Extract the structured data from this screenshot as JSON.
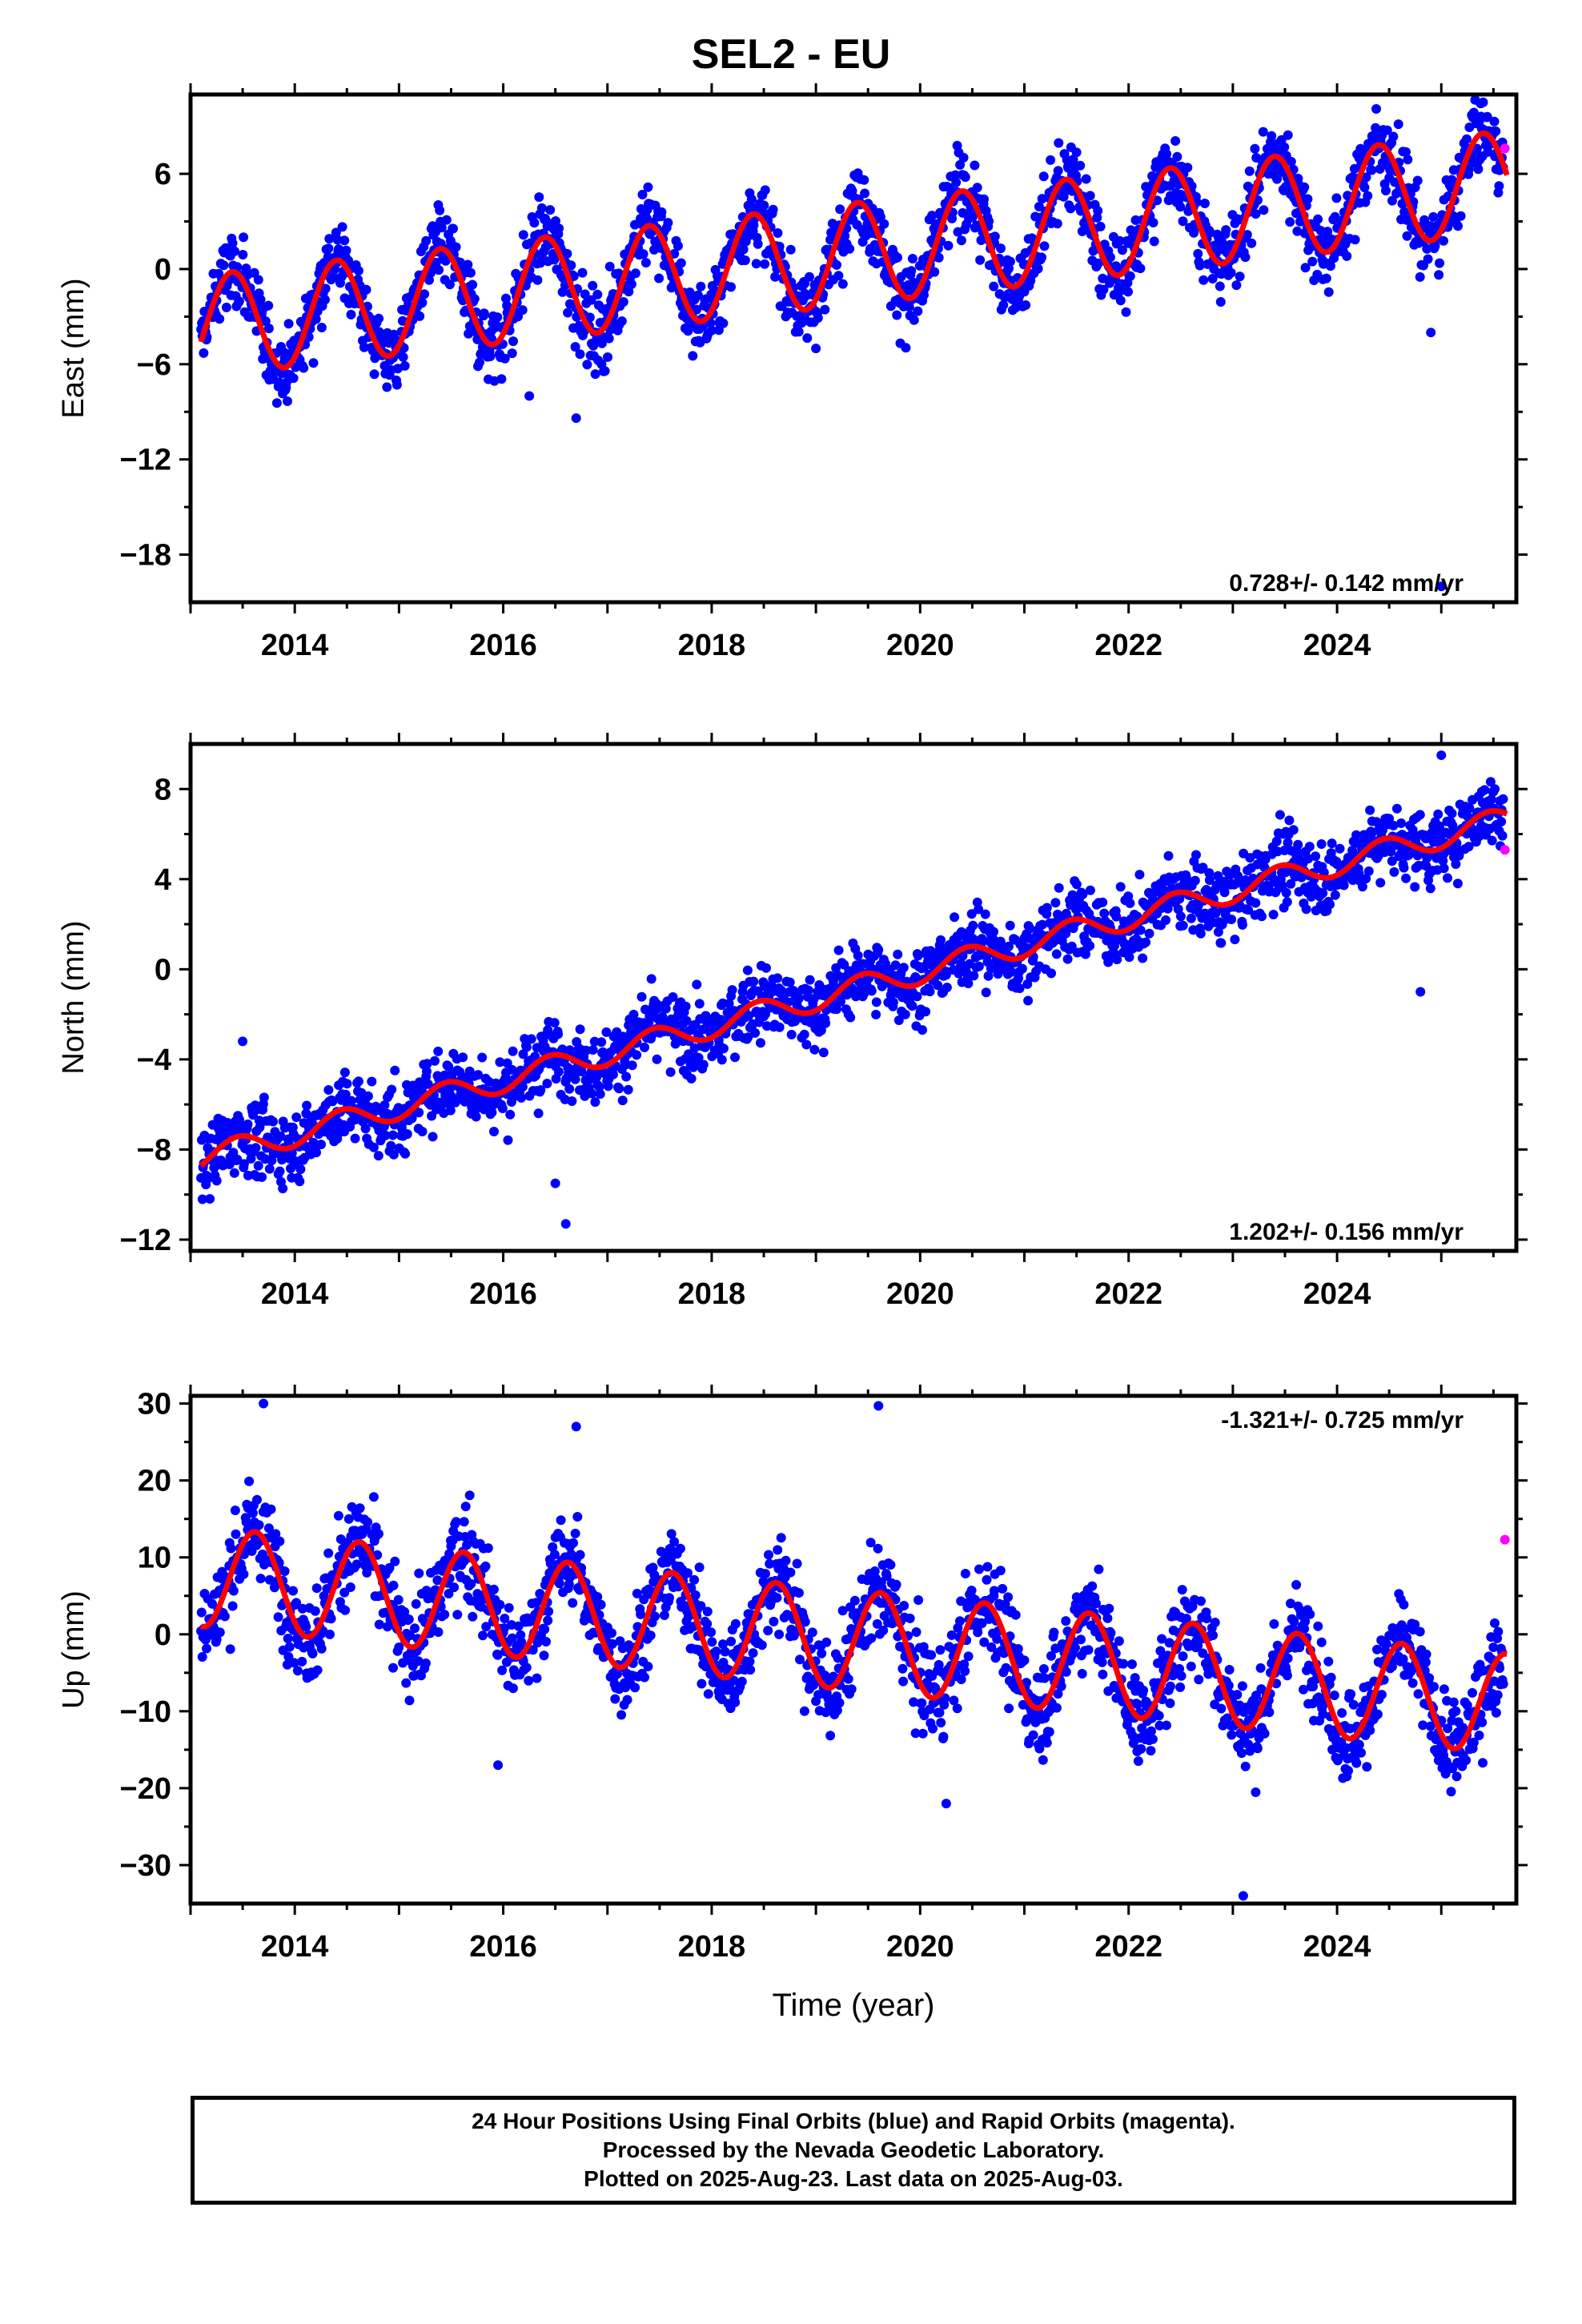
{
  "title": "SEL2 - EU",
  "footer": {
    "line1": "24 Hour Positions Using Final Orbits (blue) and Rapid Orbits (magenta).",
    "line2": "Processed by the Nevada Geodetic Laboratory.",
    "line3": "Plotted on 2025-Aug-23. Last data on 2025-Aug-03."
  },
  "colors": {
    "final": "#0000ff",
    "rapid": "#ff00ff",
    "model": "#ff0000",
    "axis": "#000000"
  },
  "chart_data": [
    {
      "type": "scatter",
      "panel": "east",
      "ylabel": "East (mm)",
      "xlabel": "",
      "xlim": [
        2013.0,
        2025.72
      ],
      "ylim": [
        -21,
        11
      ],
      "xticks": [
        2014,
        2016,
        2018,
        2020,
        2022,
        2024
      ],
      "yticks": [
        6,
        0,
        -6,
        -12,
        -18
      ],
      "ytick_labels": [
        "6",
        "0",
        "−6",
        "−12",
        "−18"
      ],
      "rate_label": "0.728+/- 0.142 mm/yr",
      "rate_label_position": "bottom-right",
      "model": {
        "t0": 2013.1,
        "offset": -3.6,
        "trend": 0.728,
        "amplitude": 3.2,
        "peak": 0.4,
        "mid_offset": 0.9
      },
      "scatter": 2.0,
      "outliers": [
        [
          2016.7,
          -9.4
        ],
        [
          2016.25,
          -8.0
        ],
        [
          2024.9,
          -4.0
        ],
        [
          2025.0,
          -20.0
        ]
      ],
      "rapid_orbits": [
        [
          2025.61,
          7.6
        ]
      ]
    },
    {
      "type": "scatter",
      "panel": "north",
      "ylabel": "North (mm)",
      "xlabel": "",
      "xlim": [
        2013.0,
        2025.72
      ],
      "ylim": [
        -12.5,
        10
      ],
      "xticks": [
        2014,
        2016,
        2018,
        2020,
        2022,
        2024
      ],
      "yticks": [
        8,
        4,
        0,
        -4,
        -8,
        -12
      ],
      "ytick_labels": [
        "8",
        "4",
        "0",
        "−4",
        "−8",
        "−12"
      ],
      "rate_label": "1.202+/- 0.156 mm/yr",
      "rate_label_position": "bottom-right",
      "model": {
        "t0": 2013.1,
        "offset": -8.4,
        "trend": 1.202,
        "amplitude": 0.55,
        "peak": 0.45,
        "mid_offset": 1.4
      },
      "scatter": 1.3,
      "outliers": [
        [
          2016.6,
          -11.3
        ],
        [
          2016.5,
          -9.5
        ],
        [
          2013.5,
          -3.2
        ],
        [
          2024.8,
          -1.0
        ],
        [
          2025.0,
          9.5
        ]
      ],
      "rapid_orbits": [
        [
          2025.61,
          5.3
        ]
      ]
    },
    {
      "type": "scatter",
      "panel": "up",
      "ylabel": "Up (mm)",
      "xlabel": "Time (year)",
      "xlim": [
        2013.0,
        2025.72
      ],
      "ylim": [
        -35,
        31
      ],
      "xticks": [
        2014,
        2016,
        2018,
        2020,
        2022,
        2024
      ],
      "yticks": [
        30,
        20,
        10,
        0,
        -10,
        -20,
        -30
      ],
      "ytick_labels": [
        "30",
        "20",
        "10",
        "0",
        "−10",
        "−20",
        "−30"
      ],
      "rate_label": "-1.321+/- 0.725 mm/yr",
      "rate_label_position": "top-right",
      "model": {
        "t0": 2013.1,
        "offset": 7.5,
        "trend": -1.321,
        "amplitude": 6.5,
        "peak": 0.62,
        "mid_offset": 0.0
      },
      "scatter": 5.0,
      "outliers": [
        [
          2013.7,
          30.0
        ],
        [
          2019.6,
          29.7
        ],
        [
          2016.7,
          27.0
        ],
        [
          2023.1,
          -34.0
        ],
        [
          2015.95,
          -17.0
        ],
        [
          2020.25,
          -22.0
        ]
      ],
      "rapid_orbits": [
        [
          2025.61,
          12.3
        ]
      ]
    }
  ]
}
